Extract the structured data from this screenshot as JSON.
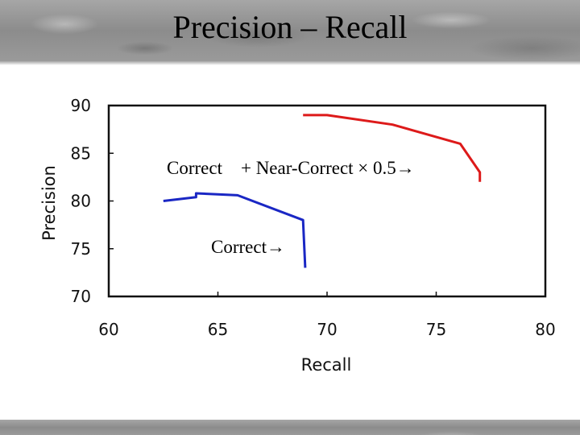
{
  "slide": {
    "title": "Precision – Recall"
  },
  "chart_data": {
    "type": "line",
    "title": "",
    "xlabel": "Recall",
    "ylabel": "Precision",
    "xlim": [
      60,
      80
    ],
    "ylim": [
      70,
      90
    ],
    "xticks": [
      "60",
      "65",
      "70",
      "75",
      "80"
    ],
    "yticks": [
      "90",
      "85",
      "80",
      "75",
      "70"
    ],
    "grid": false,
    "series": [
      {
        "color": "#dd1a1a",
        "x": [
          68.9,
          70.0,
          73.0,
          76.1,
          77.0,
          77.0
        ],
        "y": [
          89.0,
          89.0,
          88.0,
          86.0,
          83.0,
          82.0
        ]
      },
      {
        "color": "#1a27c4",
        "x": [
          62.5,
          64.0,
          64.0,
          65.9,
          68.9,
          69.0
        ],
        "y": [
          80.0,
          80.4,
          80.8,
          80.6,
          78.0,
          73.0
        ]
      }
    ],
    "annotations": [
      {
        "text": "Correct　+ Near-Correct × 0.5→"
      },
      {
        "text": "Correct→"
      }
    ]
  }
}
